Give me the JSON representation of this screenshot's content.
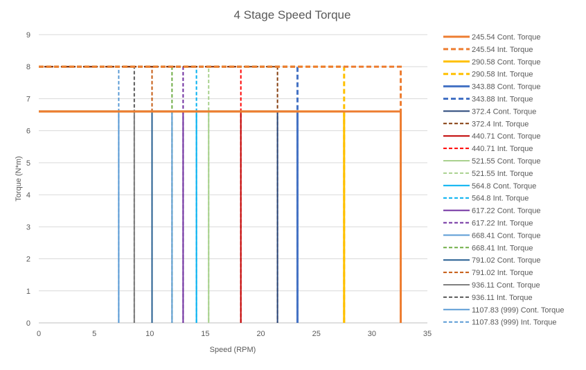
{
  "chart_data": {
    "type": "line",
    "title": "4 Stage Speed Torque",
    "xlabel": "Speed (RPM)",
    "ylabel": "Torque (N*m)",
    "xlim": [
      0,
      35
    ],
    "ylim": [
      0,
      9
    ],
    "xticks": [
      "0",
      "5",
      "10",
      "15",
      "20",
      "25",
      "30",
      "35"
    ],
    "yticks": [
      "0",
      "1",
      "2",
      "3",
      "4",
      "5",
      "6",
      "7",
      "8",
      "9"
    ],
    "grid": "horizontal",
    "legend_position": "right",
    "continuous_torque": 6.6,
    "intermittent_torque": 8.0,
    "series": [
      {
        "name": "245.54 Cont. Torque",
        "style": "solid",
        "color": "#ED7D31",
        "width": 3,
        "x": [
          0,
          32.6,
          32.6
        ],
        "y": [
          6.6,
          6.6,
          0
        ]
      },
      {
        "name": "245.54 Int. Torque",
        "style": "dashed",
        "color": "#ED7D31",
        "width": 3,
        "x": [
          0,
          32.6,
          32.6
        ],
        "y": [
          8,
          8,
          0
        ]
      },
      {
        "name": "290.58 Cont. Torque",
        "style": "solid",
        "color": "#FFC000",
        "width": 3,
        "x": [
          0,
          27.5,
          27.5
        ],
        "y": [
          6.6,
          6.6,
          0
        ]
      },
      {
        "name": "290.58 Int. Torque",
        "style": "dashed",
        "color": "#FFC000",
        "width": 3,
        "x": [
          0,
          27.5,
          27.5
        ],
        "y": [
          8,
          8,
          0
        ]
      },
      {
        "name": "343.88 Cont. Torque",
        "style": "solid",
        "color": "#4472C4",
        "width": 3,
        "x": [
          0,
          23.3,
          23.3
        ],
        "y": [
          6.6,
          6.6,
          0
        ]
      },
      {
        "name": "343.88 Int. Torque",
        "style": "dashed",
        "color": "#4472C4",
        "width": 3,
        "x": [
          0,
          23.3,
          23.3
        ],
        "y": [
          8,
          8,
          0
        ]
      },
      {
        "name": "372.4 Cont. Torque",
        "style": "solid",
        "color": "#264478",
        "width": 2,
        "x": [
          0,
          21.5,
          21.5
        ],
        "y": [
          6.6,
          6.6,
          0
        ]
      },
      {
        "name": "372.4 Int. Torque",
        "style": "dashed",
        "color": "#843C0C",
        "width": 2,
        "x": [
          0,
          21.5,
          21.5
        ],
        "y": [
          8,
          8,
          0
        ]
      },
      {
        "name": "440.71 Cont. Torque",
        "style": "solid",
        "color": "#C00000",
        "width": 2,
        "x": [
          0,
          18.2,
          18.2
        ],
        "y": [
          6.6,
          6.6,
          0
        ]
      },
      {
        "name": "440.71 Int. Torque",
        "style": "dashed",
        "color": "#FF0000",
        "width": 2,
        "x": [
          0,
          18.2,
          18.2
        ],
        "y": [
          8,
          8,
          0
        ]
      },
      {
        "name": "521.55 Cont. Torque",
        "style": "solid",
        "color": "#A9D18E",
        "width": 2,
        "x": [
          0,
          15.3,
          15.3
        ],
        "y": [
          6.6,
          6.6,
          0
        ]
      },
      {
        "name": "521.55 Int. Torque",
        "style": "dashed",
        "color": "#A9D18E",
        "width": 2,
        "x": [
          0,
          15.3,
          15.3
        ],
        "y": [
          8,
          8,
          0
        ]
      },
      {
        "name": "564.8 Cont. Torque",
        "style": "solid",
        "color": "#00B0F0",
        "width": 2,
        "x": [
          0,
          14.2,
          14.2
        ],
        "y": [
          6.6,
          6.6,
          0
        ]
      },
      {
        "name": "564.8 Int. Torque",
        "style": "dashed",
        "color": "#00B0F0",
        "width": 2,
        "x": [
          0,
          14.2,
          14.2
        ],
        "y": [
          8,
          8,
          0
        ]
      },
      {
        "name": "617.22 Cont. Torque",
        "style": "solid",
        "color": "#7030A0",
        "width": 2,
        "x": [
          0,
          13.0,
          13.0
        ],
        "y": [
          6.6,
          6.6,
          0
        ]
      },
      {
        "name": "617.22 Int. Torque",
        "style": "dashed",
        "color": "#7030A0",
        "width": 2,
        "x": [
          0,
          13.0,
          13.0
        ],
        "y": [
          8,
          8,
          0
        ]
      },
      {
        "name": "668.41 Cont. Torque",
        "style": "solid",
        "color": "#5B9BD5",
        "width": 2,
        "x": [
          0,
          12.0,
          12.0
        ],
        "y": [
          6.6,
          6.6,
          0
        ]
      },
      {
        "name": "668.41 Int. Torque",
        "style": "dashed",
        "color": "#70AD47",
        "width": 2,
        "x": [
          0,
          12.0,
          12.0
        ],
        "y": [
          8,
          8,
          0
        ]
      },
      {
        "name": "791.02 Cont. Torque",
        "style": "solid",
        "color": "#255E91",
        "width": 2,
        "x": [
          0,
          10.2,
          10.2
        ],
        "y": [
          6.6,
          6.6,
          0
        ]
      },
      {
        "name": "791.02 Int. Torque",
        "style": "dashed",
        "color": "#C55A11",
        "width": 2,
        "x": [
          0,
          10.2,
          10.2
        ],
        "y": [
          8,
          8,
          0
        ]
      },
      {
        "name": "936.11 Cont. Torque",
        "style": "solid",
        "color": "#7F7F7F",
        "width": 2,
        "x": [
          0,
          8.6,
          8.6
        ],
        "y": [
          6.6,
          6.6,
          0
        ]
      },
      {
        "name": "936.11 Int. Torque",
        "style": "dashed",
        "color": "#595959",
        "width": 2,
        "x": [
          0,
          8.6,
          8.6
        ],
        "y": [
          8,
          8,
          0
        ]
      },
      {
        "name": "1107.83 (999) Cont. Torque",
        "style": "solid",
        "color": "#5B9BD5",
        "width": 2,
        "x": [
          0,
          7.2,
          7.2
        ],
        "y": [
          6.6,
          6.6,
          0
        ]
      },
      {
        "name": "1107.83 (999) Int. Torque",
        "style": "dashed",
        "color": "#5B9BD5",
        "width": 2,
        "x": [
          0,
          7.2,
          7.2
        ],
        "y": [
          8,
          8,
          0
        ]
      }
    ]
  }
}
